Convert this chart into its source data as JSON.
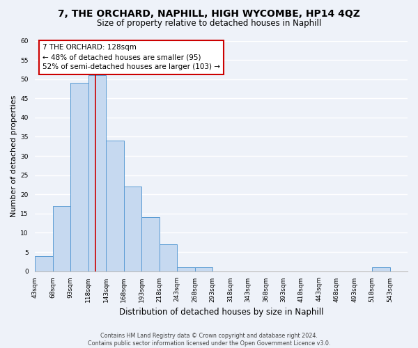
{
  "title": "7, THE ORCHARD, NAPHILL, HIGH WYCOMBE, HP14 4QZ",
  "subtitle": "Size of property relative to detached houses in Naphill",
  "xlabel": "Distribution of detached houses by size in Naphill",
  "ylabel": "Number of detached properties",
  "bin_labels": [
    "43sqm",
    "68sqm",
    "93sqm",
    "118sqm",
    "143sqm",
    "168sqm",
    "193sqm",
    "218sqm",
    "243sqm",
    "268sqm",
    "293sqm",
    "318sqm",
    "343sqm",
    "368sqm",
    "393sqm",
    "418sqm",
    "443sqm",
    "468sqm",
    "493sqm",
    "518sqm",
    "543sqm"
  ],
  "bar_heights": [
    4,
    17,
    49,
    51,
    34,
    22,
    14,
    7,
    1,
    1,
    0,
    0,
    0,
    0,
    0,
    0,
    0,
    0,
    0,
    1,
    0
  ],
  "bar_color": "#c6d9f0",
  "bar_edge_color": "#5a9bd4",
  "subject_line_color": "#cc0000",
  "annotation_text": "7 THE ORCHARD: 128sqm\n← 48% of detached houses are smaller (95)\n52% of semi-detached houses are larger (103) →",
  "annotation_box_color": "#ffffff",
  "annotation_box_edge_color": "#cc0000",
  "ylim": [
    0,
    60
  ],
  "yticks": [
    0,
    5,
    10,
    15,
    20,
    25,
    30,
    35,
    40,
    45,
    50,
    55,
    60
  ],
  "footer_text": "Contains HM Land Registry data © Crown copyright and database right 2024.\nContains public sector information licensed under the Open Government Licence v3.0.",
  "bg_color": "#eef2f9",
  "grid_color": "#ffffff",
  "title_fontsize": 10,
  "subtitle_fontsize": 8.5,
  "axis_label_fontsize": 8,
  "tick_fontsize": 6.5,
  "annotation_fontsize": 7.5,
  "footer_fontsize": 5.8
}
